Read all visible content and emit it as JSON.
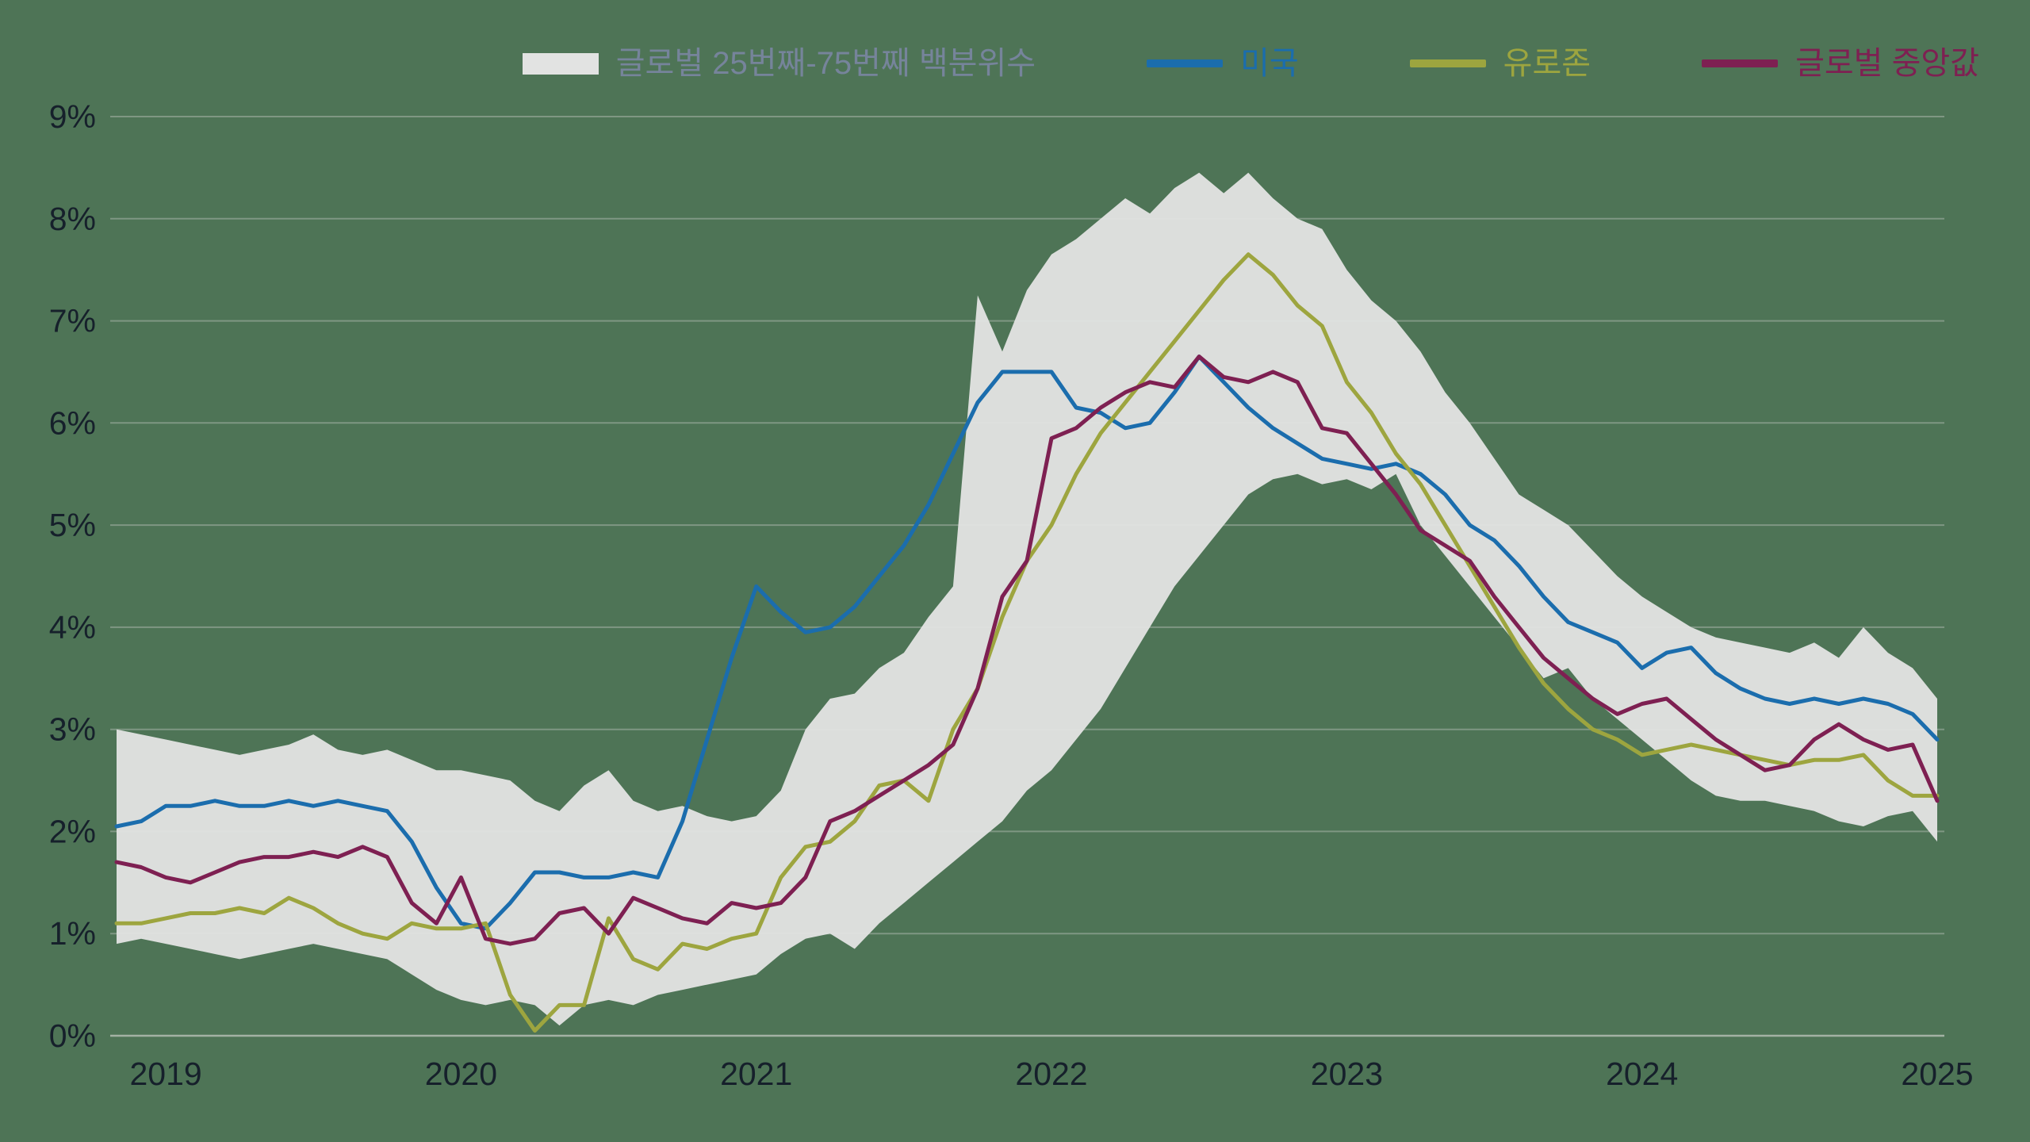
{
  "colors": {
    "background": "#4e7456",
    "grid_line": "#a8b5a8",
    "axis_label": "#16202b"
  },
  "chart_data": {
    "type": "line",
    "unit": "%",
    "grid": "horizontal",
    "legend_position": "top",
    "ylim": [
      0,
      9
    ],
    "y_tick_labels": [
      "0%",
      "1%",
      "2%",
      "3%",
      "4%",
      "5%",
      "6%",
      "7%",
      "8%",
      "9%"
    ],
    "x_tick_labels": [
      "2019",
      "2020",
      "2021",
      "2022",
      "2023",
      "2024",
      "2025"
    ],
    "x_tick_indices": [
      2,
      14,
      26,
      38,
      50,
      62,
      74
    ],
    "band": {
      "key": "global-percentile-band",
      "name": "글로벌 25번째-75번째 백분위수",
      "color": "#e2e3e2",
      "label_color": "#76849b",
      "lower": [
        0.9,
        0.95,
        0.9,
        0.85,
        0.8,
        0.75,
        0.8,
        0.85,
        0.9,
        0.85,
        0.8,
        0.75,
        0.6,
        0.45,
        0.35,
        0.3,
        0.35,
        0.3,
        0.1,
        0.3,
        0.35,
        0.3,
        0.4,
        0.45,
        0.5,
        0.55,
        0.6,
        0.8,
        0.95,
        1.0,
        0.85,
        1.1,
        1.3,
        1.5,
        1.7,
        1.9,
        2.1,
        2.4,
        2.6,
        2.9,
        3.2,
        3.6,
        4.0,
        4.4,
        4.7,
        5.0,
        5.3,
        5.45,
        5.5,
        5.4,
        5.45,
        5.35,
        5.5,
        5.0,
        4.7,
        4.4,
        4.1,
        3.8,
        3.5,
        3.6,
        3.3,
        3.1,
        2.9,
        2.7,
        2.5,
        2.35,
        2.3,
        2.3,
        2.25,
        2.2,
        2.1,
        2.05,
        2.15,
        2.2,
        1.9
      ],
      "upper": [
        3.0,
        2.95,
        2.9,
        2.85,
        2.8,
        2.75,
        2.8,
        2.85,
        2.95,
        2.8,
        2.75,
        2.8,
        2.7,
        2.6,
        2.6,
        2.55,
        2.5,
        2.3,
        2.2,
        2.45,
        2.6,
        2.3,
        2.2,
        2.25,
        2.15,
        2.1,
        2.15,
        2.4,
        3.0,
        3.3,
        3.35,
        3.6,
        3.75,
        4.1,
        4.4,
        7.25,
        6.7,
        7.3,
        7.65,
        7.8,
        8.0,
        8.2,
        8.05,
        8.3,
        8.45,
        8.25,
        8.45,
        8.2,
        8.0,
        7.9,
        7.5,
        7.2,
        7.0,
        6.7,
        6.3,
        6.0,
        5.65,
        5.3,
        5.15,
        5.0,
        4.75,
        4.5,
        4.3,
        4.15,
        4.0,
        3.9,
        3.85,
        3.8,
        3.75,
        3.85,
        3.7,
        4.0,
        3.75,
        3.6,
        3.3
      ]
    },
    "series": [
      {
        "key": "us",
        "name": "미국",
        "color": "#1b6dad",
        "values": [
          2.05,
          2.1,
          2.25,
          2.25,
          2.3,
          2.25,
          2.25,
          2.3,
          2.25,
          2.3,
          2.25,
          2.2,
          1.9,
          1.45,
          1.1,
          1.05,
          1.3,
          1.6,
          1.6,
          1.55,
          1.55,
          1.6,
          1.55,
          2.1,
          2.9,
          3.7,
          4.4,
          4.15,
          3.95,
          4.0,
          4.2,
          4.5,
          4.8,
          5.2,
          5.7,
          6.2,
          6.5,
          6.5,
          6.5,
          6.15,
          6.1,
          5.95,
          6.0,
          6.3,
          6.65,
          6.4,
          6.15,
          5.95,
          5.8,
          5.65,
          5.6,
          5.55,
          5.6,
          5.5,
          5.3,
          5.0,
          4.85,
          4.6,
          4.3,
          4.05,
          3.95,
          3.85,
          3.6,
          3.75,
          3.8,
          3.55,
          3.4,
          3.3,
          3.25,
          3.3,
          3.25,
          3.3,
          3.25,
          3.15,
          2.9
        ]
      },
      {
        "key": "eurozone",
        "name": "유로존",
        "color": "#9da53f",
        "values": [
          1.1,
          1.1,
          1.15,
          1.2,
          1.2,
          1.25,
          1.2,
          1.35,
          1.25,
          1.1,
          1.0,
          0.95,
          1.1,
          1.05,
          1.05,
          1.1,
          0.4,
          0.05,
          0.3,
          0.3,
          1.15,
          0.75,
          0.65,
          0.9,
          0.85,
          0.95,
          1.0,
          1.55,
          1.85,
          1.9,
          2.1,
          2.45,
          2.5,
          2.3,
          3.0,
          3.4,
          4.1,
          4.65,
          5.0,
          5.5,
          5.9,
          6.2,
          6.5,
          6.8,
          7.1,
          7.4,
          7.65,
          7.45,
          7.15,
          6.95,
          6.4,
          6.1,
          5.7,
          5.4,
          5.0,
          4.6,
          4.2,
          3.8,
          3.45,
          3.2,
          3.0,
          2.9,
          2.75,
          2.8,
          2.85,
          2.8,
          2.75,
          2.7,
          2.65,
          2.7,
          2.7,
          2.75,
          2.5,
          2.35,
          2.35
        ]
      },
      {
        "key": "global-median",
        "name": "글로벌 중앙값",
        "color": "#7e2052",
        "values": [
          1.7,
          1.65,
          1.55,
          1.5,
          1.6,
          1.7,
          1.75,
          1.75,
          1.8,
          1.75,
          1.85,
          1.75,
          1.3,
          1.1,
          1.55,
          0.95,
          0.9,
          0.95,
          1.2,
          1.25,
          1.0,
          1.35,
          1.25,
          1.15,
          1.1,
          1.3,
          1.25,
          1.3,
          1.55,
          2.1,
          2.2,
          2.35,
          2.5,
          2.65,
          2.85,
          3.4,
          4.3,
          4.65,
          5.85,
          5.95,
          6.15,
          6.3,
          6.4,
          6.35,
          6.65,
          6.45,
          6.4,
          6.5,
          6.4,
          5.95,
          5.9,
          5.6,
          5.3,
          4.95,
          4.8,
          4.65,
          4.3,
          4.0,
          3.7,
          3.5,
          3.3,
          3.15,
          3.25,
          3.3,
          3.1,
          2.9,
          2.75,
          2.6,
          2.65,
          2.9,
          3.05,
          2.9,
          2.8,
          2.85,
          2.3
        ]
      }
    ]
  }
}
